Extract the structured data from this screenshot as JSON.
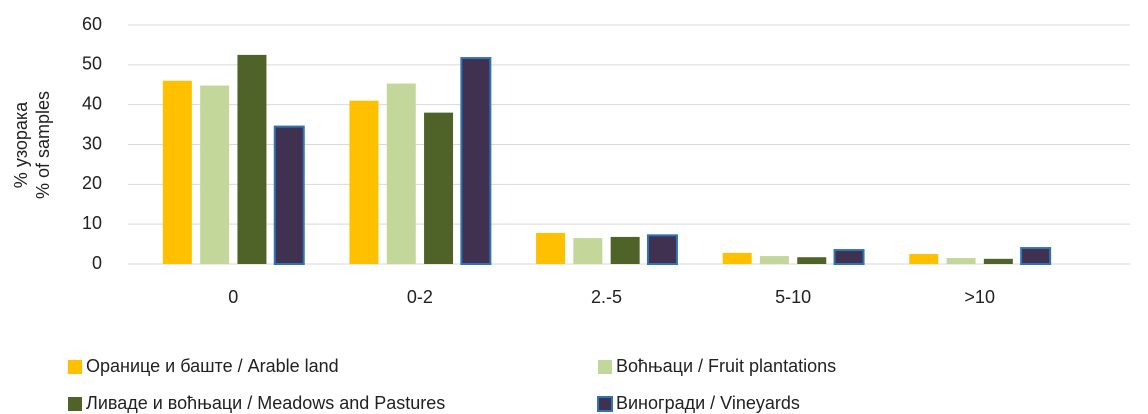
{
  "chart_data": {
    "type": "bar",
    "ylabel": [
      "% узорака",
      "% of samples"
    ],
    "categories": [
      "0",
      "0-2",
      "2.-5",
      "5-10",
      ">10"
    ],
    "series": [
      {
        "name": "Оранице и баште / Arable land",
        "color": "#FFC000",
        "values": [
          46,
          41,
          7.8,
          2.8,
          2.5
        ]
      },
      {
        "name": "Воћњаци / Fruit plantations",
        "color": "#C4D79B",
        "values": [
          44.8,
          45.3,
          6.5,
          2.0,
          1.5
        ]
      },
      {
        "name": "Ливаде и воћњаци / Meadows and Pastures",
        "color": "#4F6228",
        "values": [
          52.5,
          38,
          6.8,
          1.7,
          1.3
        ]
      },
      {
        "name": "Виногради / Vineyards",
        "color": "#403151",
        "edgecolor": "#2E75B6",
        "values": [
          34.5,
          51.7,
          7.2,
          3.5,
          4.0
        ]
      }
    ],
    "ylim": [
      0,
      60
    ],
    "yticks": [
      0,
      10,
      20,
      30,
      40,
      50,
      60
    ],
    "grid": true
  }
}
